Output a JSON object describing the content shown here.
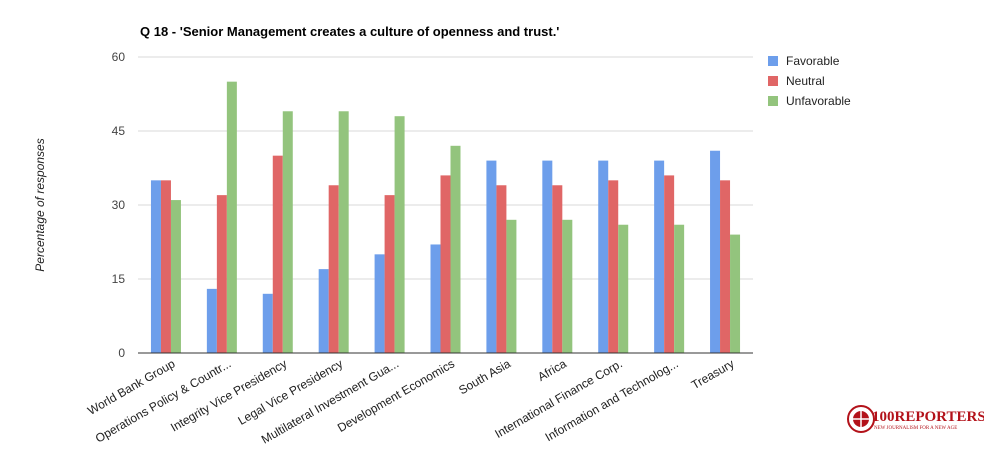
{
  "chart_data": {
    "type": "bar",
    "title": "Q 18 - 'Senior Management creates a culture of openness and trust.'",
    "ylabel": "Percentage of responses",
    "xlabel": "",
    "ylim": [
      0,
      60
    ],
    "yticks": [
      0,
      15,
      30,
      45,
      60
    ],
    "grid": true,
    "legend_position": "right",
    "categories": [
      "World Bank Group",
      "Operations Policy & Countr...",
      "Integrity Vice Presidency",
      "Legal Vice Presidency",
      "Multilateral Investment Gua...",
      "Development Economics",
      "South Asia",
      "Africa",
      "International Finance Corp.",
      "Information and Technolog...",
      "Treasury"
    ],
    "series": [
      {
        "name": "Favorable",
        "color": "#6d9eeb",
        "values": [
          35,
          13,
          12,
          17,
          20,
          22,
          39,
          39,
          39,
          39,
          41
        ]
      },
      {
        "name": "Neutral",
        "color": "#e06666",
        "values": [
          35,
          32,
          40,
          34,
          32,
          36,
          34,
          34,
          35,
          36,
          35
        ]
      },
      {
        "name": "Unfavorable",
        "color": "#93c47d",
        "values": [
          31,
          55,
          49,
          49,
          48,
          42,
          27,
          27,
          26,
          26,
          24
        ]
      }
    ]
  },
  "logo": {
    "text": "100REPORTERS",
    "tagline": "NEW JOURNALISM FOR A NEW AGE"
  }
}
